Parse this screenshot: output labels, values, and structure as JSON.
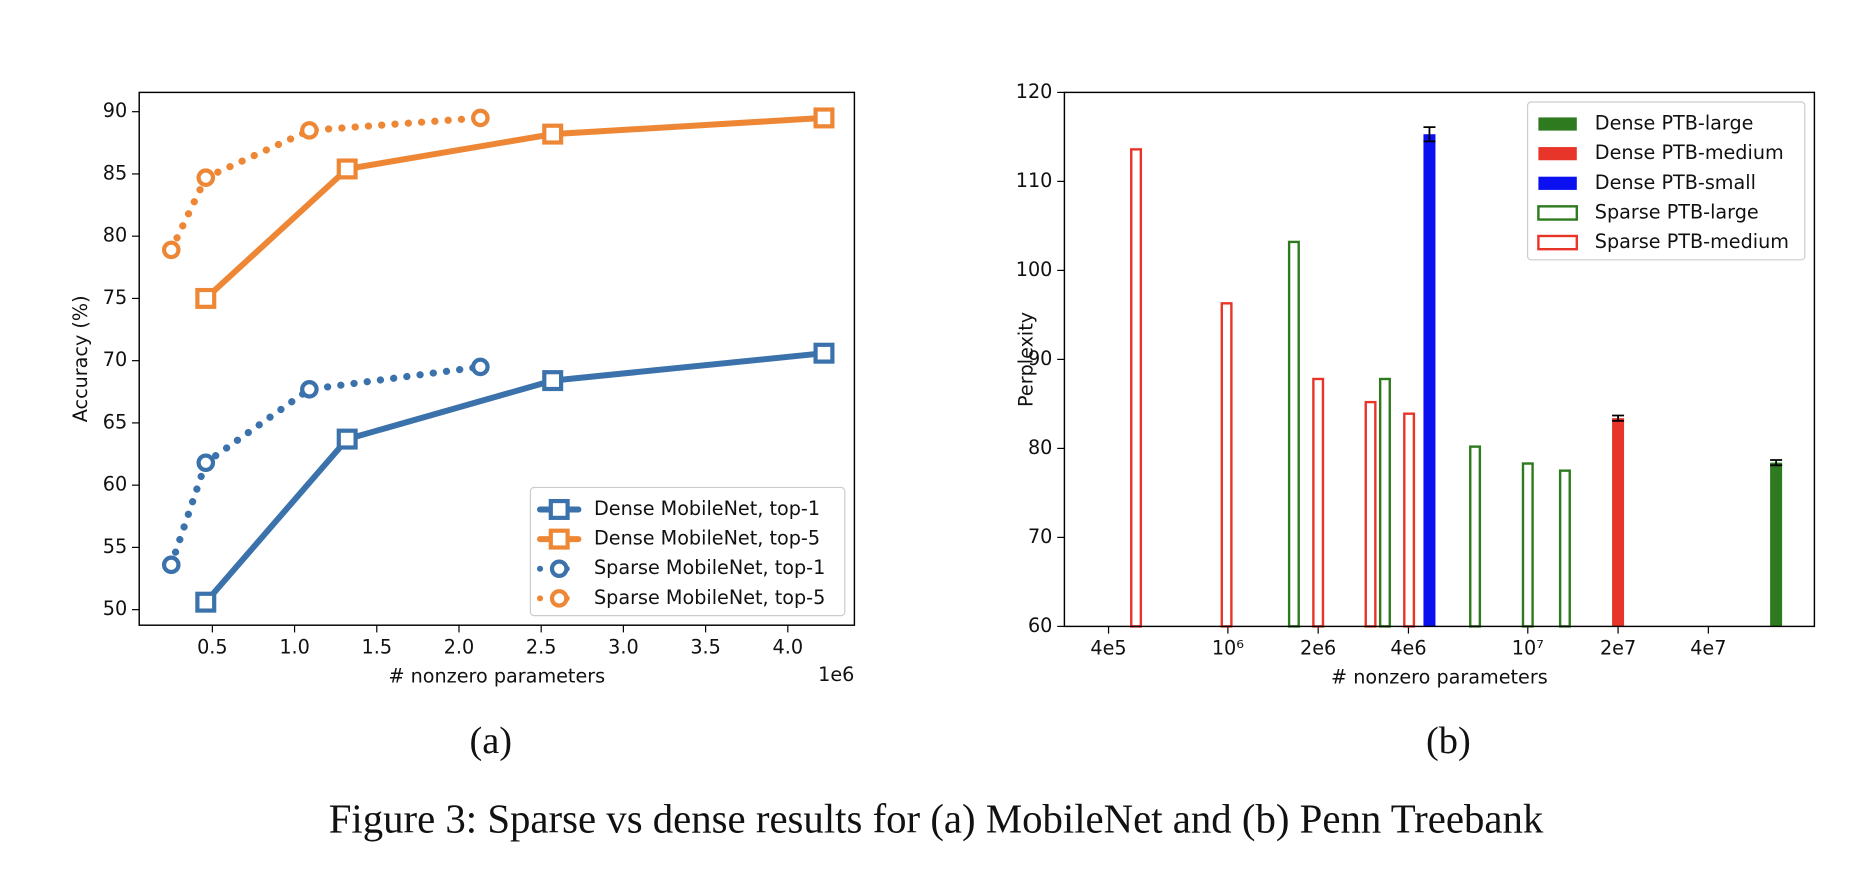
{
  "chart_data": [
    {
      "type": "line",
      "subcaption": "(a)",
      "xlabel": "# nonzero parameters",
      "ylabel": "Accuracy (%)",
      "x_offset_label": "1e6",
      "xlim": [
        0.055,
        4.405
      ],
      "ylim": [
        48.75,
        91.55
      ],
      "xticks": [
        0.5,
        {
          "value": 1,
          "label": "1.0"
        },
        1.5,
        {
          "value": 2,
          "label": "2.0"
        },
        2.5,
        {
          "value": 3,
          "label": "3.0"
        },
        3.5,
        {
          "value": 4,
          "label": "4.0"
        }
      ],
      "yticks": [
        50,
        55,
        60,
        65,
        70,
        75,
        80,
        85,
        90
      ],
      "legend": "lower right",
      "series": [
        {
          "name": "Dense MobileNet, top-1",
          "color": "#3b72ab",
          "linestyle": "solid",
          "marker": "square",
          "x": [
            0.46,
            1.32,
            2.57,
            4.22
          ],
          "values": [
            50.6,
            63.7,
            68.4,
            70.6
          ]
        },
        {
          "name": "Dense MobileNet, top-5",
          "color": "#ee8735",
          "linestyle": "solid",
          "marker": "square",
          "x": [
            0.46,
            1.32,
            2.57,
            4.22
          ],
          "values": [
            75.0,
            85.4,
            88.2,
            89.5
          ]
        },
        {
          "name": "Sparse MobileNet, top-1",
          "color": "#3b72ab",
          "linestyle": "dotted",
          "marker": "circle",
          "x": [
            0.25,
            0.46,
            1.09,
            2.13
          ],
          "values": [
            53.6,
            61.8,
            67.7,
            69.5
          ]
        },
        {
          "name": "Sparse MobileNet, top-5",
          "color": "#ee8735",
          "linestyle": "dotted",
          "marker": "circle",
          "x": [
            0.25,
            0.46,
            1.09,
            2.13
          ],
          "values": [
            78.9,
            84.7,
            88.5,
            89.5
          ]
        }
      ]
    },
    {
      "type": "bar",
      "subcaption": "(b)",
      "xlabel": "# nonzero parameters",
      "ylabel": "Perplexity",
      "xscale": "log",
      "xlim": [
        285000,
        90300000
      ],
      "ylim": [
        60,
        120
      ],
      "xticks": [
        {
          "value": 400000,
          "label": "4e5"
        },
        {
          "value": 1000000,
          "label": "10⁶"
        },
        {
          "value": 2000000,
          "label": "2e6"
        },
        {
          "value": 4000000,
          "label": "4e6"
        },
        {
          "value": 10000000,
          "label": "10⁷"
        },
        {
          "value": 20000000,
          "label": "2e7"
        },
        {
          "value": 40000000,
          "label": "4e7"
        }
      ],
      "yticks": [
        60,
        70,
        80,
        90,
        100,
        110,
        120
      ],
      "legend": "upper right",
      "series": [
        {
          "name": "Dense PTB-large",
          "color": "#2e7a1f",
          "filled": true,
          "x": [
            67300000
          ],
          "values": [
            78.4
          ],
          "errors": [
            0.3
          ]
        },
        {
          "name": "Dense PTB-medium",
          "color": "#e8352a",
          "filled": true,
          "x": [
            20000000
          ],
          "values": [
            83.4
          ],
          "errors": [
            0.3
          ]
        },
        {
          "name": "Dense PTB-small",
          "color": "#0a10f0",
          "filled": true,
          "x": [
            4700000
          ],
          "values": [
            115.3
          ],
          "errors": [
            0.8
          ]
        },
        {
          "name": "Sparse PTB-large",
          "color": "#2e7a1f",
          "filled": false,
          "x": [
            1660000,
            3340000,
            6670000,
            10000000,
            13300000
          ],
          "values": [
            103.2,
            87.8,
            80.2,
            78.3,
            77.5
          ]
        },
        {
          "name": "Sparse PTB-medium",
          "color": "#e8352a",
          "filled": false,
          "x": [
            494000,
            990000,
            2000000,
            2990000,
            4020000
          ],
          "values": [
            113.6,
            96.3,
            87.8,
            85.2,
            83.9
          ]
        }
      ]
    }
  ],
  "figure_caption": "Figure 3: Sparse vs dense results for (a) MobileNet and (b) Penn Treebank"
}
